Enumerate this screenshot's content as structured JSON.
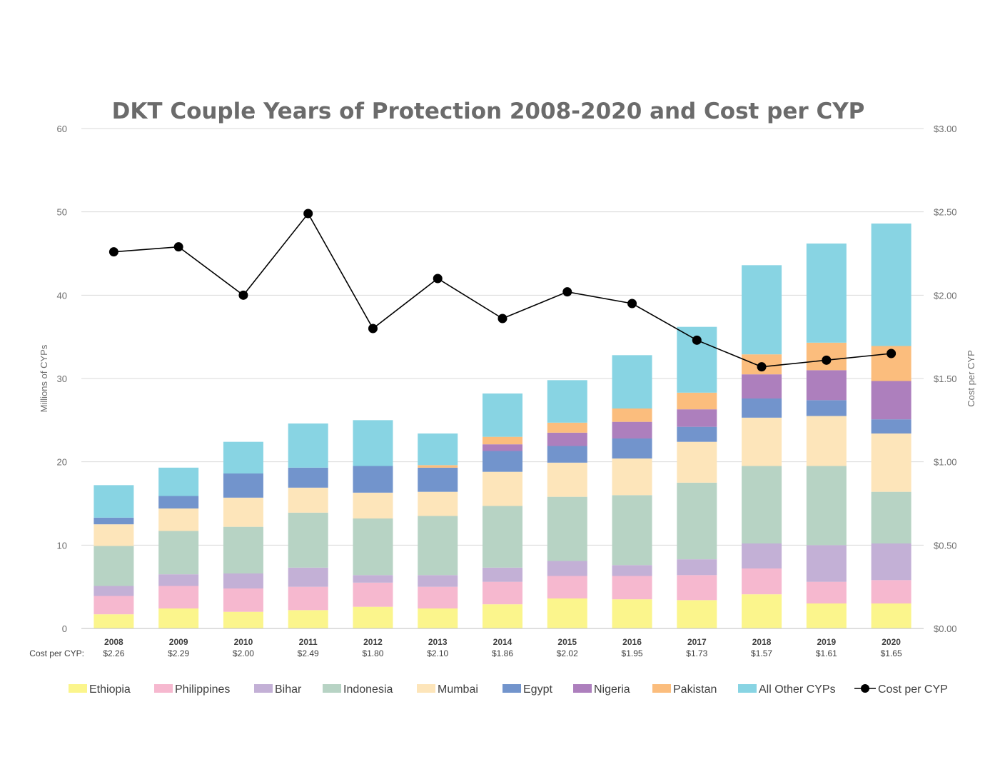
{
  "chart_data": {
    "type": "bar",
    "stacked": true,
    "title": "DKT Couple Years of Protection 2008-2020 and Cost per CYP",
    "ylabel": "Millions of CYPs",
    "y2label": "Cost per CYP",
    "ylim": [
      0,
      60
    ],
    "y2lim": [
      0,
      3
    ],
    "yticks": [
      "0",
      "10",
      "20",
      "30",
      "40",
      "50",
      "60"
    ],
    "y2ticks": [
      "$0.00",
      "$0.50",
      "$1.00",
      "$1.50",
      "$2.00",
      "$2.50",
      "$3.00"
    ],
    "grid": true,
    "legend_position": "bottom",
    "cost_row_label": "Cost per CYP:",
    "categories": [
      "2008",
      "2009",
      "2010",
      "2011",
      "2012",
      "2013",
      "2014",
      "2015",
      "2016",
      "2017",
      "2018",
      "2019",
      "2020"
    ],
    "cost_labels": [
      "$2.26",
      "$2.29",
      "$2.00",
      "$2.49",
      "$1.80",
      "$2.10",
      "$1.86",
      "$2.02",
      "$1.95",
      "$1.73",
      "$1.57",
      "$1.61",
      "$1.65"
    ],
    "series": [
      {
        "name": "Ethiopia",
        "color": "#fbf58c",
        "values": [
          1.7,
          2.4,
          2.0,
          2.2,
          2.6,
          2.4,
          2.9,
          3.6,
          3.5,
          3.4,
          4.1,
          3.0,
          3.0
        ]
      },
      {
        "name": "Philippines",
        "color": "#f6b8cf",
        "values": [
          2.2,
          2.7,
          2.8,
          2.8,
          2.9,
          2.6,
          2.7,
          2.7,
          2.8,
          3.0,
          3.1,
          2.6,
          2.8
        ]
      },
      {
        "name": "Bihar",
        "color": "#c3b0d6",
        "values": [
          1.2,
          1.4,
          1.8,
          2.3,
          0.9,
          1.4,
          1.7,
          1.8,
          1.3,
          1.9,
          3.0,
          4.4,
          4.4
        ]
      },
      {
        "name": "Indonesia",
        "color": "#b7d3c4",
        "values": [
          4.8,
          5.2,
          5.6,
          6.6,
          6.8,
          7.1,
          7.4,
          7.7,
          8.4,
          9.2,
          9.3,
          9.5,
          6.2
        ]
      },
      {
        "name": "Mumbai",
        "color": "#fde5ba",
        "values": [
          2.6,
          2.7,
          3.5,
          3.0,
          3.1,
          2.9,
          4.1,
          4.1,
          4.4,
          4.9,
          5.8,
          6.0,
          7.0
        ]
      },
      {
        "name": "Egypt",
        "color": "#7294cc",
        "values": [
          0.8,
          1.5,
          2.9,
          2.4,
          3.2,
          2.9,
          2.5,
          2.0,
          2.4,
          1.8,
          2.3,
          1.9,
          1.7
        ]
      },
      {
        "name": "Nigeria",
        "color": "#ad7fbd",
        "values": [
          0,
          0,
          0,
          0,
          0,
          0,
          0.8,
          1.6,
          2.0,
          2.1,
          2.9,
          3.6,
          4.6
        ]
      },
      {
        "name": "Pakistan",
        "color": "#fbbd7d",
        "values": [
          0,
          0,
          0,
          0,
          0,
          0.3,
          0.9,
          1.2,
          1.6,
          2.0,
          2.4,
          3.3,
          4.2
        ]
      },
      {
        "name": "All Other CYPs",
        "color": "#88d4e3",
        "values": [
          3.9,
          3.4,
          3.8,
          5.3,
          5.5,
          3.8,
          5.2,
          5.1,
          6.4,
          7.9,
          10.7,
          11.9,
          14.7
        ]
      }
    ],
    "line_series": {
      "name": "Cost per CYP",
      "color": "#000000",
      "axis": "right",
      "values": [
        2.26,
        2.29,
        2.0,
        2.49,
        1.8,
        2.1,
        1.86,
        2.02,
        1.95,
        1.73,
        1.57,
        1.61,
        1.65
      ]
    }
  }
}
